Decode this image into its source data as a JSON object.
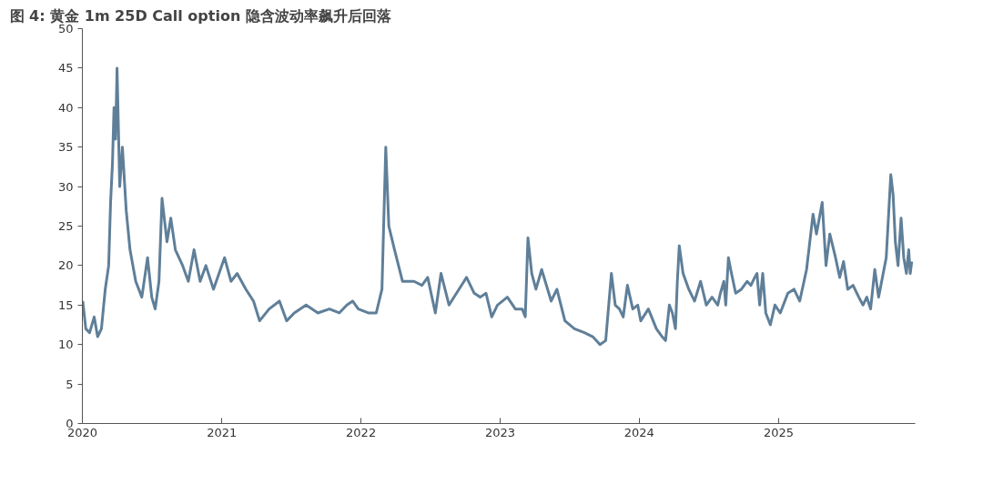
{
  "chart_data": {
    "type": "line",
    "title": "图 4:  黄金 1m 25D Call option  隐含波动率飙升后回落",
    "x": [
      "2020-01-02",
      "2020-01-10",
      "2020-01-20",
      "2020-02-01",
      "2020-02-10",
      "2020-02-20",
      "2020-03-01",
      "2020-03-10",
      "2020-03-15",
      "2020-03-20",
      "2020-03-24",
      "2020-03-28",
      "2020-04-01",
      "2020-04-08",
      "2020-04-15",
      "2020-04-25",
      "2020-05-05",
      "2020-05-20",
      "2020-06-05",
      "2020-06-20",
      "2020-07-01",
      "2020-07-10",
      "2020-07-20",
      "2020-07-28",
      "2020-08-10",
      "2020-08-20",
      "2020-09-01",
      "2020-09-20",
      "2020-10-05",
      "2020-10-20",
      "2020-11-05",
      "2020-11-20",
      "2020-12-10",
      "2021-01-08",
      "2021-01-25",
      "2021-02-10",
      "2021-03-05",
      "2021-03-25",
      "2021-04-10",
      "2021-05-05",
      "2021-06-01",
      "2021-06-20",
      "2021-07-10",
      "2021-08-10",
      "2021-09-10",
      "2021-10-10",
      "2021-11-05",
      "2021-11-25",
      "2021-12-10",
      "2021-12-25",
      "2022-01-20",
      "2022-02-10",
      "2022-02-25",
      "2022-03-07",
      "2022-03-15",
      "2022-03-30",
      "2022-04-20",
      "2022-05-20",
      "2022-06-10",
      "2022-06-25",
      "2022-07-15",
      "2022-07-30",
      "2022-08-20",
      "2022-09-15",
      "2022-10-05",
      "2022-10-25",
      "2022-11-10",
      "2022-11-25",
      "2022-12-10",
      "2022-12-25",
      "2023-01-20",
      "2023-02-10",
      "2023-02-28",
      "2023-03-08",
      "2023-03-15",
      "2023-03-25",
      "2023-04-05",
      "2023-04-20",
      "2023-05-15",
      "2023-05-30",
      "2023-06-20",
      "2023-07-15",
      "2023-08-10",
      "2023-09-01",
      "2023-09-20",
      "2023-10-05",
      "2023-10-20",
      "2023-10-30",
      "2023-11-10",
      "2023-11-20",
      "2023-12-01",
      "2023-12-15",
      "2023-12-28",
      "2024-01-05",
      "2024-01-25",
      "2024-02-15",
      "2024-03-01",
      "2024-03-10",
      "2024-03-20",
      "2024-03-28",
      "2024-04-05",
      "2024-04-10",
      "2024-04-15",
      "2024-04-25",
      "2024-05-10",
      "2024-05-25",
      "2024-06-10",
      "2024-06-25",
      "2024-07-10",
      "2024-07-25",
      "2024-08-01",
      "2024-08-10",
      "2024-08-15",
      "2024-08-22",
      "2024-08-30",
      "2024-09-10",
      "2024-09-25",
      "2024-10-10",
      "2024-10-20",
      "2024-10-30",
      "2024-11-05",
      "2024-11-12",
      "2024-11-20",
      "2024-11-28",
      "2024-12-10",
      "2024-12-22",
      "2025-01-05",
      "2025-01-25",
      "2025-02-10",
      "2025-02-25",
      "2025-03-15",
      "2025-04-01",
      "2025-04-10",
      "2025-04-25",
      "2025-05-05",
      "2025-05-15",
      "2025-05-30",
      "2025-06-10",
      "2025-06-20",
      "2025-07-01",
      "2025-07-15",
      "2025-07-30",
      "2025-08-10",
      "2025-08-20",
      "2025-08-30",
      "2025-09-10",
      "2025-09-20",
      "2025-09-30",
      "2025-10-10",
      "2025-10-22",
      "2025-10-28",
      "2025-11-03",
      "2025-11-10",
      "2025-11-18",
      "2025-11-25",
      "2025-12-02",
      "2025-12-08",
      "2025-12-12",
      "2025-12-16"
    ],
    "series": [
      {
        "color": "#5f7f99",
        "values": [
          15.5,
          12,
          11.5,
          13.5,
          11,
          12,
          17,
          20,
          28,
          33,
          40,
          36,
          45,
          30,
          35,
          27,
          22,
          18,
          16,
          21,
          16,
          14.5,
          18,
          28.5,
          23,
          26,
          22,
          20,
          18,
          22,
          18,
          20,
          17,
          21,
          18,
          19,
          17,
          15.5,
          13,
          14.5,
          15.5,
          13,
          14,
          15,
          14,
          14.5,
          14,
          15,
          15.5,
          14.5,
          14,
          14,
          17,
          35,
          25,
          22,
          18,
          18,
          17.5,
          18.5,
          14,
          19,
          15,
          17,
          18.5,
          16.5,
          16,
          16.5,
          13.5,
          15,
          16,
          14.5,
          14.5,
          13.5,
          23.5,
          19,
          17,
          19.5,
          15.5,
          17,
          13,
          12,
          11.5,
          11,
          10,
          10.5,
          19,
          15,
          14.5,
          13.5,
          17.5,
          14.5,
          15,
          13,
          14.5,
          12,
          11,
          10.5,
          15,
          14,
          12,
          18,
          22.5,
          19,
          17,
          15.5,
          18,
          15,
          16,
          15,
          16.5,
          18,
          15,
          21,
          19,
          16.5,
          17,
          18,
          17.5,
          18.5,
          19,
          15,
          19,
          14,
          12.5,
          15,
          14,
          16.5,
          17,
          15.5,
          19.5,
          26.5,
          24,
          28,
          20,
          24,
          21,
          18.5,
          20.5,
          17,
          17.5,
          16,
          15,
          16,
          14.5,
          19.5,
          16,
          18.5,
          21,
          31.5,
          29,
          23,
          20,
          26,
          21,
          19,
          22,
          19,
          20.5
        ]
      }
    ],
    "xlim": [
      "2020-01-01",
      "2025-12-25"
    ],
    "xticks": [
      "2020",
      "2021",
      "2022",
      "2023",
      "2024",
      "2025"
    ],
    "ylim": [
      0,
      50
    ],
    "yticks": [
      0,
      5,
      10,
      15,
      20,
      25,
      30,
      35,
      40,
      45,
      50
    ],
    "grid": false
  }
}
